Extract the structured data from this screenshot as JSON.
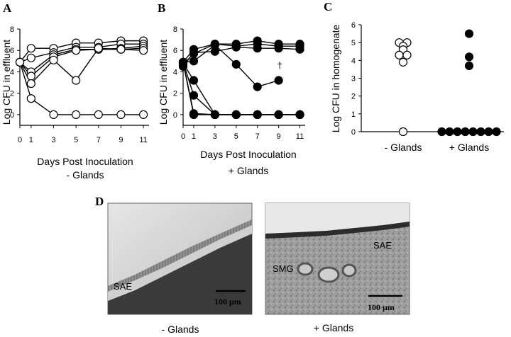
{
  "panels": {
    "A": "A",
    "B": "B",
    "C": "C",
    "D": "D"
  },
  "chart_data": [
    {
      "panel": "A",
      "type": "line",
      "xlabel": "Days Post Inoculation",
      "group_label": "- Glands",
      "ylabel": "Log CFU in effluent",
      "xlim": [
        0,
        11.5
      ],
      "ylim": [
        -1,
        8
      ],
      "xticks": [
        0,
        1,
        3,
        5,
        7,
        9,
        11
      ],
      "yticks": [
        0,
        2,
        4,
        6,
        8
      ],
      "marker": "open",
      "series": [
        {
          "x": [
            0,
            1,
            3,
            5,
            7,
            9,
            11
          ],
          "y": [
            4.9,
            6.2,
            6.2,
            6.7,
            6.7,
            6.9,
            6.9
          ]
        },
        {
          "x": [
            0,
            1,
            3,
            5,
            7,
            9,
            11
          ],
          "y": [
            4.9,
            5.3,
            5.8,
            6.3,
            6.3,
            6.6,
            6.6
          ]
        },
        {
          "x": [
            0,
            1,
            3,
            5,
            7,
            9,
            11
          ],
          "y": [
            4.9,
            4.0,
            5.6,
            6.1,
            6.1,
            6.2,
            6.4
          ]
        },
        {
          "x": [
            0,
            1,
            3,
            5,
            7,
            9,
            11
          ],
          "y": [
            4.9,
            3.6,
            5.4,
            6.0,
            6.1,
            6.1,
            6.2
          ]
        },
        {
          "x": [
            0,
            1,
            3,
            5,
            7,
            9,
            11
          ],
          "y": [
            4.9,
            2.9,
            5.1,
            3.2,
            6.2,
            6.1,
            6.0
          ]
        },
        {
          "x": [
            0,
            1,
            3,
            5,
            7,
            9,
            11
          ],
          "y": [
            4.9,
            1.5,
            0,
            0,
            0,
            0,
            0
          ]
        }
      ]
    },
    {
      "panel": "B",
      "type": "line",
      "xlabel": "Days Post Inoculation",
      "group_label": "+ Glands",
      "ylabel": "Log CFU in effluent",
      "xlim": [
        0,
        11.5
      ],
      "ylim": [
        -1,
        8
      ],
      "xticks": [
        0,
        1,
        3,
        5,
        7,
        9,
        11
      ],
      "yticks": [
        0,
        2,
        4,
        6,
        8
      ],
      "marker": "filled",
      "annotation": "†",
      "series": [
        {
          "x": [
            0,
            1,
            3,
            5,
            7,
            9,
            11
          ],
          "y": [
            4.9,
            6.1,
            6.6,
            6.6,
            6.9,
            6.6,
            6.6
          ]
        },
        {
          "x": [
            0,
            1,
            3,
            5,
            7,
            9,
            11
          ],
          "y": [
            4.7,
            5.7,
            6.6,
            6.4,
            6.6,
            6.4,
            6.4
          ]
        },
        {
          "x": [
            0,
            1,
            3,
            5,
            7,
            9,
            11
          ],
          "y": [
            4.5,
            5.8,
            5.9,
            6.3,
            6.2,
            6.2,
            6.1
          ]
        },
        {
          "x": [
            0,
            1,
            3,
            5,
            7,
            9
          ],
          "y": [
            4.9,
            5.0,
            6.5,
            4.7,
            2.6,
            3.2
          ]
        },
        {
          "x": [
            0,
            1,
            3,
            5,
            7,
            9,
            11
          ],
          "y": [
            4.8,
            3.2,
            0,
            0,
            0,
            0,
            0
          ]
        },
        {
          "x": [
            0,
            1,
            3,
            5,
            7,
            9,
            11
          ],
          "y": [
            4.9,
            1.8,
            0,
            0,
            0,
            0,
            0
          ]
        },
        {
          "x": [
            0,
            1,
            3,
            5,
            7,
            9,
            11
          ],
          "y": [
            4.9,
            0.1,
            0,
            0,
            0,
            0,
            0
          ]
        },
        {
          "x": [
            0,
            1,
            3,
            5,
            7,
            9,
            11
          ],
          "y": [
            4.9,
            0,
            0,
            0,
            0,
            0,
            0
          ]
        },
        {
          "x": [
            0,
            1,
            3,
            5,
            7,
            9,
            11
          ],
          "y": [
            4.9,
            0,
            0,
            0,
            0,
            0,
            0
          ]
        }
      ]
    },
    {
      "panel": "C",
      "type": "scatter",
      "ylabel": "Log CFU in homogenate",
      "categories": [
        "- Glands",
        "+ Glands"
      ],
      "ylim": [
        0,
        6
      ],
      "yticks": [
        0,
        1,
        2,
        3,
        4,
        5,
        6
      ],
      "groups": [
        {
          "category": "- Glands",
          "marker": "open",
          "values": [
            5.0,
            5.0,
            4.8,
            4.6,
            4.3,
            4.3,
            3.9,
            0
          ]
        },
        {
          "category": "+ Glands",
          "marker": "filled",
          "values": [
            5.5,
            4.2,
            3.7,
            0,
            0,
            0,
            0,
            0,
            0,
            0,
            0
          ]
        }
      ]
    }
  ],
  "micrographs": {
    "left": {
      "label": "SAE",
      "scale": "100 µm",
      "caption": "- Glands"
    },
    "right": {
      "label_1": "SAE",
      "label_2": "SMG",
      "scale": "100 µm",
      "caption": "+ Glands"
    }
  }
}
